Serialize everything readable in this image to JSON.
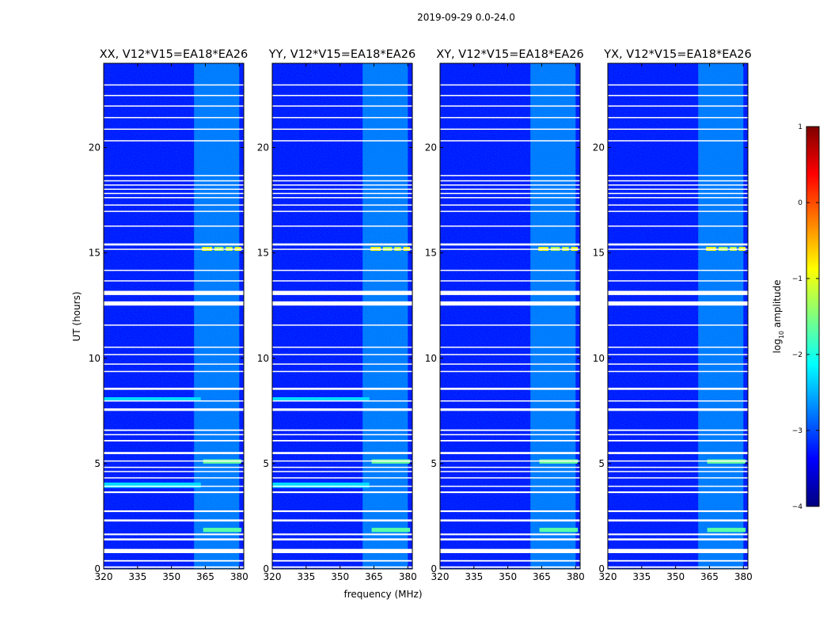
{
  "figure": {
    "suptitle": "2019-09-29 0.0-24.0",
    "ylabel": "UT (hours)",
    "xlabel": "frequency (MHz)"
  },
  "colorbar": {
    "label_prefix": "log",
    "label_sub": "10",
    "label_suffix": " amplitude",
    "range": [
      -4,
      1
    ],
    "ticks": [
      {
        "value": 1,
        "label": "1"
      },
      {
        "value": 0,
        "label": "0"
      },
      {
        "value": -1,
        "label": "−1"
      },
      {
        "value": -2,
        "label": "−2"
      },
      {
        "value": -3,
        "label": "−3"
      },
      {
        "value": -4,
        "label": "−4"
      }
    ],
    "stops": [
      "#00007f",
      "#0000ff",
      "#007fff",
      "#00ffff",
      "#7fff7f",
      "#ffff00",
      "#ff7f00",
      "#ff0000",
      "#7f0000"
    ]
  },
  "chart_data": {
    "type": "heatmap",
    "colormap": "jet",
    "x_range": [
      320,
      382
    ],
    "y_range": [
      0,
      24
    ],
    "x_ticks": [
      {
        "value": 320,
        "label": "320"
      },
      {
        "value": 335,
        "label": "335"
      },
      {
        "value": 350,
        "label": "350"
      },
      {
        "value": 365,
        "label": "365"
      },
      {
        "value": 380,
        "label": "380"
      }
    ],
    "y_ticks": [
      {
        "value": 0,
        "label": "0"
      },
      {
        "value": 5,
        "label": "5"
      },
      {
        "value": 10,
        "label": "10"
      },
      {
        "value": 15,
        "label": "15"
      },
      {
        "value": 20,
        "label": "20"
      }
    ],
    "background_level": -3.3,
    "rfi_band_mhz": [
      360,
      380
    ],
    "rfi_band_level": -2.2,
    "flagged_time_ranges_hours": [
      [
        0.05,
        0.12
      ],
      [
        0.35,
        0.42
      ],
      [
        0.75,
        0.95
      ],
      [
        1.35,
        1.45
      ],
      [
        1.6,
        1.68
      ],
      [
        2.25,
        2.35
      ],
      [
        2.7,
        2.78
      ],
      [
        3.6,
        3.68
      ],
      [
        3.9,
        3.95
      ],
      [
        4.3,
        4.35
      ],
      [
        4.6,
        4.65
      ],
      [
        4.8,
        4.85
      ],
      [
        5.1,
        5.15
      ],
      [
        5.45,
        5.55
      ],
      [
        6.05,
        6.12
      ],
      [
        6.35,
        6.4
      ],
      [
        6.55,
        6.62
      ],
      [
        7.5,
        7.62
      ],
      [
        7.95,
        8.0
      ],
      [
        8.5,
        8.6
      ],
      [
        9.35,
        9.4
      ],
      [
        9.7,
        9.75
      ],
      [
        10.15,
        10.2
      ],
      [
        10.5,
        10.55
      ],
      [
        11.55,
        11.6
      ],
      [
        12.5,
        12.7
      ],
      [
        13.0,
        13.2
      ],
      [
        13.65,
        13.7
      ],
      [
        14.15,
        14.2
      ],
      [
        15.15,
        15.2
      ],
      [
        15.35,
        15.45
      ],
      [
        16.25,
        16.3
      ],
      [
        16.95,
        17.0
      ],
      [
        17.25,
        17.3
      ],
      [
        17.6,
        17.65
      ],
      [
        17.8,
        17.85
      ],
      [
        18.0,
        18.05
      ],
      [
        18.2,
        18.25
      ],
      [
        18.4,
        18.45
      ],
      [
        18.65,
        18.7
      ],
      [
        20.3,
        20.35
      ],
      [
        20.85,
        20.9
      ],
      [
        21.4,
        21.45
      ],
      [
        21.95,
        22.0
      ],
      [
        22.45,
        22.5
      ],
      [
        22.95,
        23.0
      ]
    ],
    "panels": [
      {
        "title": "XX, V12*V15=EA18*EA26",
        "features": [
          {
            "t": [
              15.1,
              15.28
            ],
            "f": [
              363.5,
              368
            ],
            "level": -0.9
          },
          {
            "t": [
              15.1,
              15.28
            ],
            "f": [
              369,
              373
            ],
            "level": -1.2
          },
          {
            "t": [
              15.1,
              15.28
            ],
            "f": [
              374,
              377
            ],
            "level": -1.1
          },
          {
            "t": [
              15.1,
              15.28
            ],
            "f": [
              378,
              381
            ],
            "level": -0.9
          },
          {
            "t": [
              3.85,
              4.1
            ],
            "f": [
              320,
              363
            ],
            "level": -2.3
          },
          {
            "t": [
              7.95,
              8.15
            ],
            "f": [
              320,
              363
            ],
            "level": -2.3
          },
          {
            "t": [
              5.0,
              5.2
            ],
            "f": [
              364,
              381
            ],
            "level": -1.6
          },
          {
            "t": [
              1.75,
              1.95
            ],
            "f": [
              364,
              381
            ],
            "level": -1.7
          }
        ]
      },
      {
        "title": "YY, V12*V15=EA18*EA26",
        "features": [
          {
            "t": [
              15.1,
              15.28
            ],
            "f": [
              363.5,
              368
            ],
            "level": -0.9
          },
          {
            "t": [
              15.1,
              15.28
            ],
            "f": [
              369,
              373
            ],
            "level": -1.2
          },
          {
            "t": [
              15.1,
              15.28
            ],
            "f": [
              374,
              377
            ],
            "level": -1.1
          },
          {
            "t": [
              15.1,
              15.28
            ],
            "f": [
              378,
              381
            ],
            "level": -0.9
          },
          {
            "t": [
              3.85,
              4.1
            ],
            "f": [
              320,
              363
            ],
            "level": -2.3
          },
          {
            "t": [
              7.95,
              8.15
            ],
            "f": [
              320,
              363
            ],
            "level": -2.3
          },
          {
            "t": [
              5.0,
              5.2
            ],
            "f": [
              364,
              381
            ],
            "level": -1.6
          },
          {
            "t": [
              1.75,
              1.95
            ],
            "f": [
              364,
              381
            ],
            "level": -1.7
          }
        ]
      },
      {
        "title": "XY, V12*V15=EA18*EA26",
        "features": [
          {
            "t": [
              15.1,
              15.28
            ],
            "f": [
              363.5,
              368
            ],
            "level": -0.9
          },
          {
            "t": [
              15.1,
              15.28
            ],
            "f": [
              369,
              373
            ],
            "level": -1.2
          },
          {
            "t": [
              15.1,
              15.28
            ],
            "f": [
              374,
              377
            ],
            "level": -1.1
          },
          {
            "t": [
              15.1,
              15.28
            ],
            "f": [
              378,
              381
            ],
            "level": -0.9
          },
          {
            "t": [
              5.0,
              5.2
            ],
            "f": [
              364,
              381
            ],
            "level": -1.6
          },
          {
            "t": [
              1.75,
              1.95
            ],
            "f": [
              364,
              381
            ],
            "level": -1.7
          }
        ]
      },
      {
        "title": "YX, V12*V15=EA18*EA26",
        "features": [
          {
            "t": [
              15.1,
              15.28
            ],
            "f": [
              363.5,
              368
            ],
            "level": -0.9
          },
          {
            "t": [
              15.1,
              15.28
            ],
            "f": [
              369,
              373
            ],
            "level": -1.2
          },
          {
            "t": [
              15.1,
              15.28
            ],
            "f": [
              374,
              377
            ],
            "level": -1.1
          },
          {
            "t": [
              15.1,
              15.28
            ],
            "f": [
              378,
              381
            ],
            "level": -0.9
          },
          {
            "t": [
              5.0,
              5.2
            ],
            "f": [
              364,
              381
            ],
            "level": -1.6
          },
          {
            "t": [
              1.75,
              1.95
            ],
            "f": [
              364,
              381
            ],
            "level": -1.7
          }
        ]
      }
    ]
  }
}
